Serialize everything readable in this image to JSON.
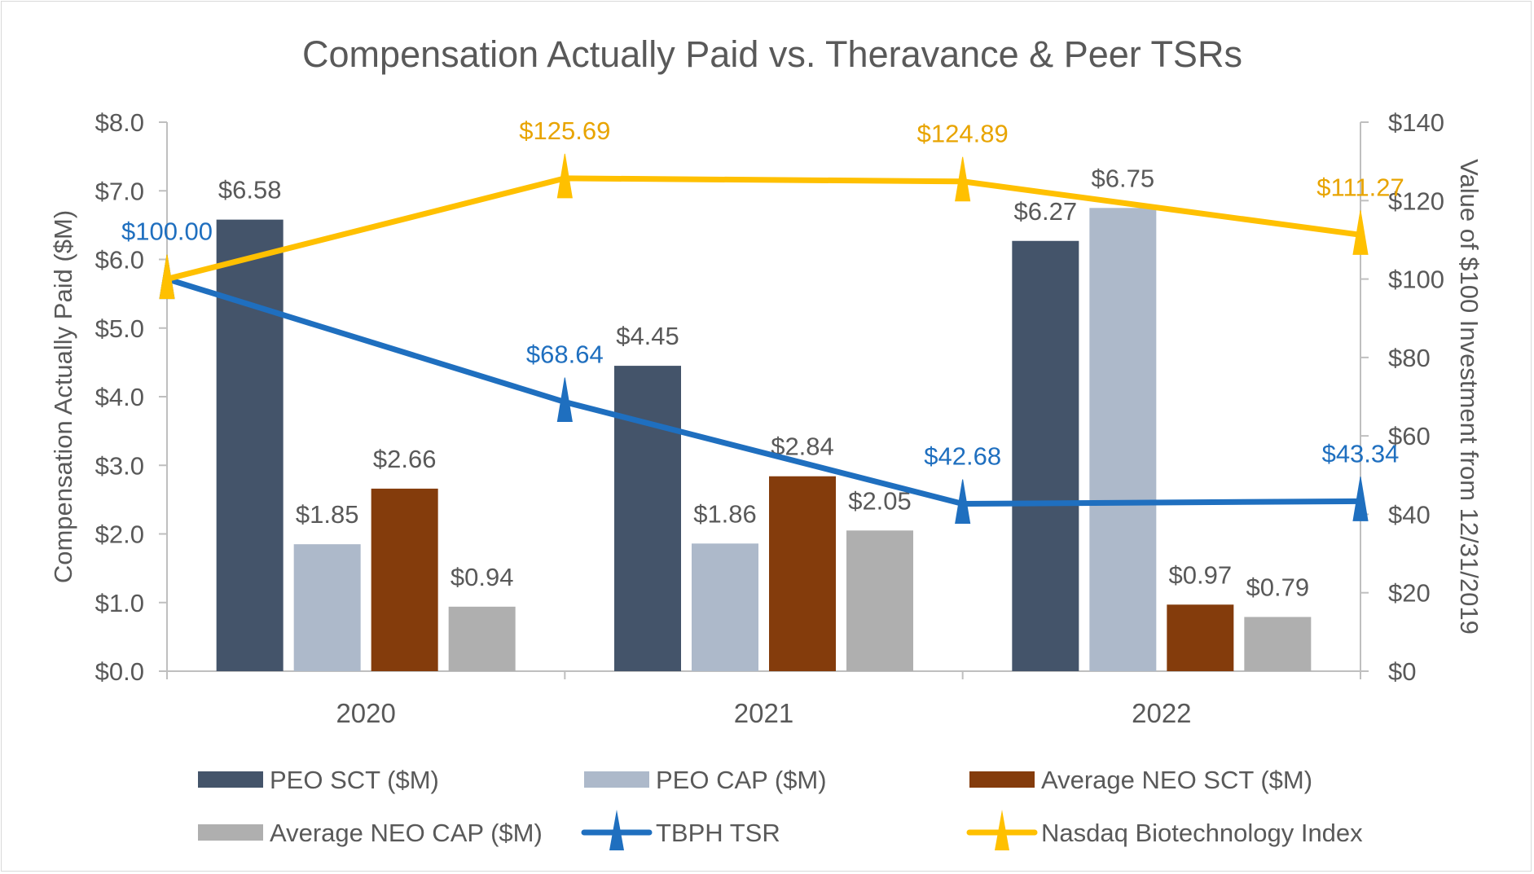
{
  "chart_data": {
    "type": "bar",
    "title": "Compensation Actually Paid vs. Theravance & Peer TSRs",
    "categories": [
      "2020",
      "2021",
      "2022"
    ],
    "ylabel": "Compensation Actually Paid ($M)",
    "ylabel_right": "Value of $100 Investment from 12/31/2019",
    "ylim": [
      0,
      8
    ],
    "ylim_right": [
      0,
      140
    ],
    "y_ticks": [
      0,
      1,
      2,
      3,
      4,
      5,
      6,
      7,
      8
    ],
    "y_tick_labels": [
      "$0.0",
      "$1.0",
      "$2.0",
      "$3.0",
      "$4.0",
      "$5.0",
      "$6.0",
      "$7.0",
      "$8.0"
    ],
    "y_right_ticks": [
      0,
      20,
      40,
      60,
      80,
      100,
      120,
      140
    ],
    "y_right_tick_labels": [
      "$0",
      "$20",
      "$40",
      "$60",
      "$80",
      "$100",
      "$120",
      "$140"
    ],
    "grid": false,
    "legend_position": "bottom",
    "bar_series": [
      {
        "name": "PEO SCT ($M)",
        "color": "#44546a",
        "values": [
          6.58,
          4.45,
          6.27
        ],
        "labels": [
          "$6.58",
          "$4.45",
          "$6.27"
        ]
      },
      {
        "name": "PEO CAP ($M)",
        "color": "#adb9ca",
        "values": [
          1.85,
          1.86,
          6.75
        ],
        "labels": [
          "$1.85",
          "$1.86",
          "$6.75"
        ]
      },
      {
        "name": "Average NEO SCT ($M)",
        "color": "#843c0c",
        "values": [
          2.66,
          2.84,
          0.97
        ],
        "labels": [
          "$2.66",
          "$2.84",
          "$0.97"
        ]
      },
      {
        "name": "Average NEO CAP ($M)",
        "color": "#afafaf",
        "values": [
          0.94,
          2.05,
          0.79
        ],
        "labels": [
          "$0.94",
          "$2.05",
          "$0.79"
        ]
      }
    ],
    "line_series": [
      {
        "name": "TBPH TSR",
        "color": "#1f6fbf",
        "label_color": "#1f6fbf",
        "values": [
          100.0,
          68.64,
          42.68,
          43.34
        ],
        "labels": [
          "$100.00",
          "$68.64",
          "$42.68",
          "$43.34"
        ]
      },
      {
        "name": "Nasdaq Biotechnology Index",
        "color": "#ffc000",
        "label_color": "#e8a400",
        "values": [
          100.0,
          125.69,
          124.89,
          111.27
        ],
        "labels": [
          "",
          "$125.69",
          "$124.89",
          "$111.27"
        ]
      }
    ]
  }
}
